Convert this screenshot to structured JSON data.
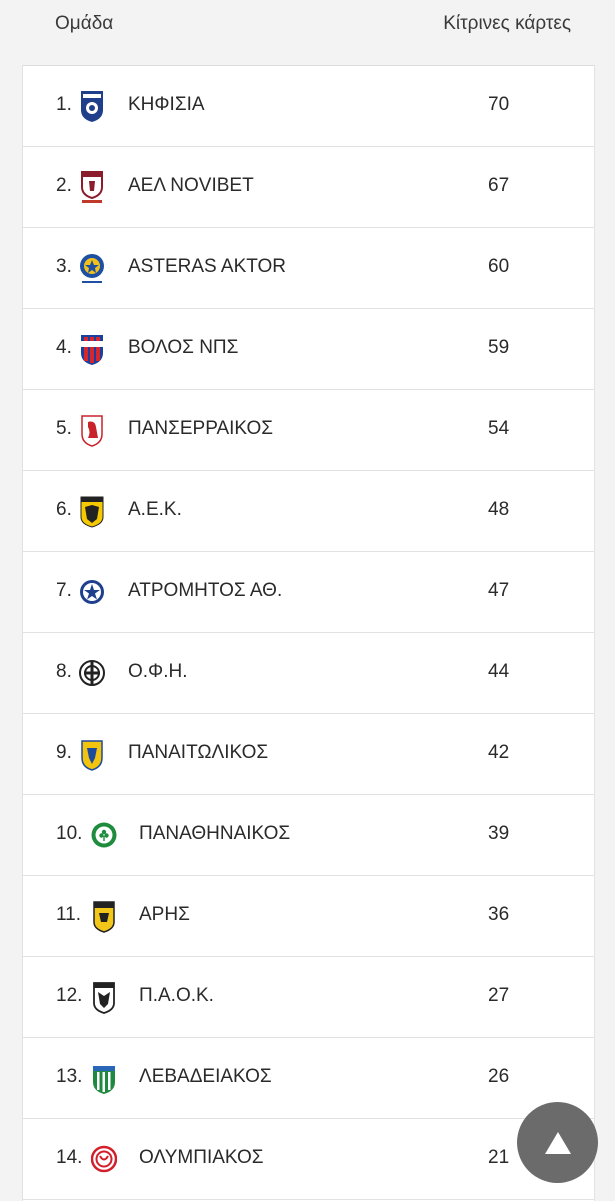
{
  "header": {
    "team_label": "Ομάδα",
    "cards_label": "Κίτρινες κάρτες"
  },
  "rows": [
    {
      "rank": "1.",
      "team": "ΚΗΦΙΣΙΑ",
      "yellow_cards": "70",
      "logo": "kifisia-logo"
    },
    {
      "rank": "2.",
      "team": "ΑΕΛ NOVIBET",
      "yellow_cards": "67",
      "logo": "ael-logo"
    },
    {
      "rank": "3.",
      "team": "ASTERAS AKTOR",
      "yellow_cards": "60",
      "logo": "asteras-logo"
    },
    {
      "rank": "4.",
      "team": "ΒΟΛΟΣ ΝΠΣ",
      "yellow_cards": "59",
      "logo": "volos-logo"
    },
    {
      "rank": "5.",
      "team": "ΠΑΝΣΕΡΡΑΙΚΟΣ",
      "yellow_cards": "54",
      "logo": "panserraikos-logo"
    },
    {
      "rank": "6.",
      "team": "Α.Ε.Κ.",
      "yellow_cards": "48",
      "logo": "aek-logo"
    },
    {
      "rank": "7.",
      "team": "ΑΤΡΟΜΗΤΟΣ ΑΘ.",
      "yellow_cards": "47",
      "logo": "atromitos-logo"
    },
    {
      "rank": "8.",
      "team": "Ο.Φ.Η.",
      "yellow_cards": "44",
      "logo": "ofi-logo"
    },
    {
      "rank": "9.",
      "team": "ΠΑΝΑΙΤΩΛΙΚΟΣ",
      "yellow_cards": "42",
      "logo": "panaitolikos-logo"
    },
    {
      "rank": "10.",
      "team": "ΠΑΝΑΘΗΝΑΙΚΟΣ",
      "yellow_cards": "39",
      "logo": "panathinaikos-logo"
    },
    {
      "rank": "11.",
      "team": "ΑΡΗΣ",
      "yellow_cards": "36",
      "logo": "aris-logo"
    },
    {
      "rank": "12.",
      "team": "Π.Α.Ο.Κ.",
      "yellow_cards": "27",
      "logo": "paok-logo"
    },
    {
      "rank": "13.",
      "team": "ΛΕΒΑΔΕΙΑΚΟΣ",
      "yellow_cards": "26",
      "logo": "levadiakos-logo"
    },
    {
      "rank": "14.",
      "team": "ΟΛΥΜΠΙΑΚΟΣ",
      "yellow_cards": "21",
      "logo": "olympiakos-logo"
    }
  ],
  "scroll_top_icon": "triangle-up-icon"
}
